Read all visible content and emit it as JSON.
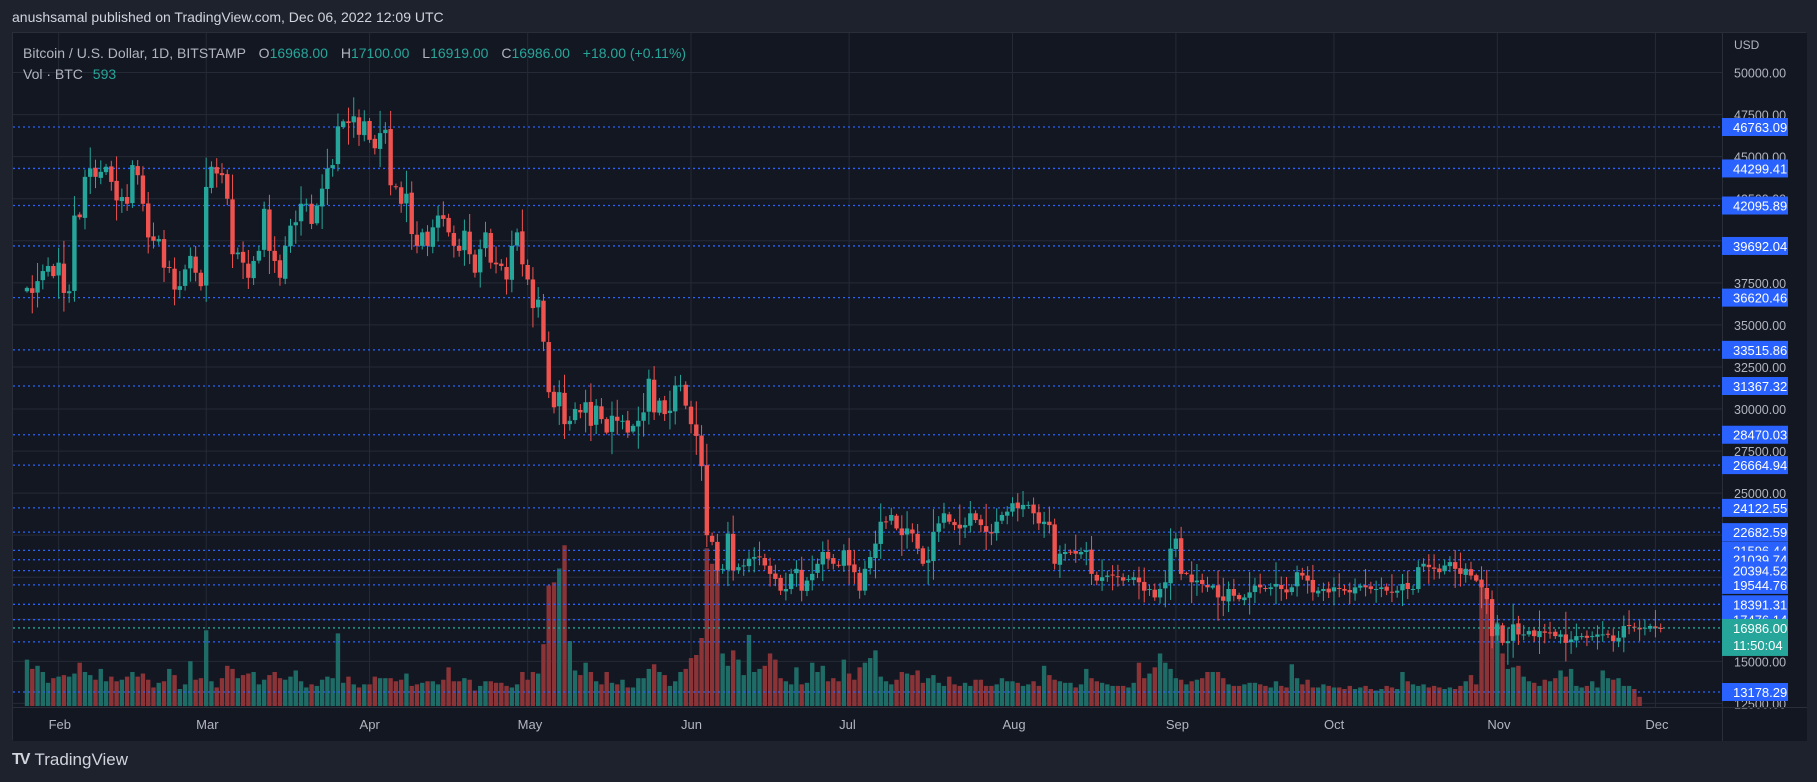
{
  "header": {
    "published_text": "anushsamal published on TradingView.com, Dec 06, 2022 12:09 UTC"
  },
  "legend": {
    "symbol": "Bitcoin / U.S. Dollar, 1D, BITSTAMP",
    "open_label": "O",
    "open": "16968.00",
    "high_label": "H",
    "high": "17100.00",
    "low_label": "L",
    "low": "16919.00",
    "close_label": "C",
    "close": "16986.00",
    "change": "+18.00 (+0.11%)",
    "vol_label": "Vol · BTC",
    "vol_value": "593"
  },
  "footer": {
    "brand": "TradingView",
    "logo_glyph": "TV"
  },
  "colors": {
    "up": "#26a69a",
    "down": "#ef5350",
    "vol_up": "#1f6b66",
    "vol_down": "#8a3438",
    "level_line": "#2962ff",
    "level_label_bg": "#2962ff",
    "last_price_bg": "#26a69a",
    "grid": "#252a36",
    "pane_bg": "#131722",
    "outer_bg": "#1e222d"
  },
  "chart_data": {
    "type": "candlestick",
    "title": "Bitcoin / U.S. Dollar, 1D, BITSTAMP",
    "currency_label": "USD",
    "price_axis_ticks": [
      "50000.00",
      "47500.00",
      "45000.00",
      "42500.00",
      "40000.00",
      "37500.00",
      "35000.00",
      "32500.00",
      "30000.00",
      "27500.00",
      "25000.00",
      "22500.00",
      "20000.00",
      "17500.00",
      "15000.00",
      "12500.00"
    ],
    "price_scale": "linear",
    "ylim": [
      11500,
      51500
    ],
    "x_tick_labels": [
      "Feb",
      "Mar",
      "Apr",
      "May",
      "Jun",
      "Jul",
      "Aug",
      "Sep",
      "Oct",
      "Nov",
      "Dec"
    ],
    "x_tick_day_index": [
      6,
      34,
      65,
      95,
      126,
      156,
      187,
      218,
      248,
      279,
      309
    ],
    "horizontal_levels": [
      "46763.09",
      "44299.41",
      "42095.89",
      "39692.04",
      "36620.46",
      "33515.86",
      "31367.32",
      "28470.03",
      "26664.94",
      "24122.55",
      "22682.59",
      "21596.44",
      "21039.74",
      "20394.52",
      "19544.76",
      "18391.31",
      "17476.14",
      "16159.18",
      "13178.29"
    ],
    "last_price": "16986.00",
    "countdown": "11:50:04",
    "closes": [
      37200,
      36900,
      37600,
      38200,
      38500,
      37900,
      38700,
      36900,
      37000,
      41500,
      41400,
      43800,
      44300,
      43800,
      44100,
      44400,
      43500,
      42400,
      42600,
      42200,
      44500,
      43900,
      42200,
      40200,
      40000,
      40100,
      38400,
      38400,
      37100,
      37300,
      38300,
      39100,
      38100,
      37300,
      43200,
      44400,
      44000,
      43900,
      42500,
      39200,
      39300,
      38700,
      37800,
      38800,
      39400,
      41900,
      39400,
      38800,
      37800,
      39700,
      40900,
      41100,
      42200,
      42200,
      41000,
      42100,
      43100,
      44300,
      44500,
      46800,
      47100,
      47000,
      47400,
      46300,
      47100,
      46000,
      45500,
      46400,
      46600,
      43300,
      43200,
      42200,
      42800,
      40400,
      39700,
      40500,
      39700,
      40800,
      41500,
      41300,
      40500,
      39700,
      39400,
      40600,
      39200,
      38100,
      39500,
      40500,
      38700,
      38600,
      38500,
      37700,
      39700,
      40500,
      38600,
      37700,
      36000,
      36500,
      34000,
      31000,
      30100,
      31000,
      29100,
      29300,
      30000,
      29800,
      30400,
      29000,
      30200,
      29400,
      28600,
      29600,
      29300,
      29300,
      28600,
      29000,
      29300,
      29800,
      31800,
      29800,
      30500,
      29700,
      29900,
      31400,
      31400,
      30200,
      29100,
      28400,
      26600,
      22500,
      22100,
      20400,
      20500,
      22600,
      20400,
      20600,
      20700,
      21100,
      21200,
      21200,
      20700,
      20200,
      19900,
      19200,
      19300,
      20200,
      20500,
      19200,
      19800,
      20200,
      20800,
      21500,
      21100,
      20800,
      20700,
      21600,
      20700,
      20300,
      19200,
      20500,
      21200,
      22000,
      23300,
      23300,
      23700,
      22900,
      22500,
      22900,
      22600,
      21700,
      20800,
      21000,
      22700,
      23200,
      23800,
      23300,
      23100,
      22900,
      23100,
      23800,
      23400,
      23100,
      22700,
      22600,
      23300,
      23700,
      23900,
      24400,
      24100,
      24300,
      24300,
      23800,
      23200,
      23300,
      23100,
      20800,
      21400,
      21500,
      21500,
      21400,
      21500,
      21600,
      20200,
      19800,
      20000,
      20100,
      20100,
      20000,
      19800,
      19900,
      20000,
      19700,
      19200,
      19300,
      18800,
      19300,
      19700,
      21700,
      22300,
      20200,
      20200,
      19700,
      19800,
      19600,
      19400,
      19500,
      18800,
      18600,
      19300,
      18900,
      18700,
      18800,
      19100,
      19500,
      19400,
      19300,
      19400,
      19600,
      19300,
      19100,
      19400,
      20300,
      20100,
      19800,
      19100,
      19200,
      19300,
      19100,
      19400,
      19300,
      19200,
      19100,
      19400,
      19500,
      19400,
      19300,
      19300,
      19400,
      19200,
      19100,
      19200,
      19600,
      19300,
      19300,
      20600,
      20800,
      20600,
      20500,
      20300,
      20700,
      20900,
      20500,
      20200,
      20500,
      20100,
      19800,
      19400,
      18700,
      16500,
      17200,
      16100,
      16200,
      17200,
      16600,
      16600,
      16800,
      16500,
      16800,
      16700,
      16700,
      16500,
      16600,
      16100,
      16300,
      16500,
      16500,
      16400,
      16500,
      16600,
      16600,
      16600,
      16200,
      16400,
      17100,
      17100,
      17000,
      16900,
      17000,
      17100,
      16968,
      16986
    ],
    "volumes": [
      3000,
      2400,
      2600,
      2200,
      1500,
      1800,
      1900,
      2000,
      1900,
      2100,
      2800,
      2200,
      2000,
      1700,
      2400,
      1600,
      1900,
      1600,
      1700,
      1900,
      2200,
      1900,
      2100,
      1700,
      1200,
      1500,
      1600,
      2400,
      2000,
      1100,
      1400,
      2900,
      1700,
      1800,
      4900,
      1600,
      1200,
      1800,
      2600,
      2400,
      1800,
      2000,
      2100,
      2200,
      1400,
      1700,
      2000,
      2200,
      1800,
      1700,
      1900,
      2300,
      1600,
      1200,
      1400,
      1300,
      1700,
      1900,
      1800,
      4700,
      1500,
      1900,
      1400,
      1200,
      1400,
      1400,
      1900,
      1800,
      1800,
      1800,
      1600,
      1700,
      2100,
      1300,
      1400,
      1500,
      1600,
      1600,
      1400,
      1700,
      2500,
      1600,
      1600,
      1800,
      1700,
      1000,
      1300,
      1600,
      1600,
      1500,
      1500,
      1300,
      1200,
      1400,
      2200,
      1700,
      2200,
      2100,
      4000,
      7800,
      8000,
      8900,
      10400,
      4200,
      2300,
      2000,
      2800,
      2200,
      1600,
      1400,
      2200,
      1500,
      1400,
      1700,
      1200,
      1200,
      1800,
      1800,
      2400,
      2700,
      2200,
      2000,
      1300,
      1600,
      2200,
      2400,
      3100,
      3300,
      4400,
      10200,
      9200,
      10600,
      3400,
      2600,
      3600,
      3000,
      2000,
      4600,
      2200,
      2400,
      2600,
      3400,
      3000,
      1800,
      1600,
      1400,
      2500,
      1400,
      1500,
      2800,
      2200,
      2600,
      1600,
      1800,
      1600,
      3000,
      2100,
      1700,
      2500,
      2800,
      3100,
      3600,
      1900,
      1600,
      1400,
      1700,
      2200,
      2100,
      2000,
      2300,
      1500,
      1800,
      2000,
      1500,
      1300,
      1900,
      1400,
      1300,
      1500,
      1300,
      1700,
      1700,
      1300,
      1300,
      1400,
      1800,
      1600,
      1600,
      1500,
      1300,
      1400,
      1600,
      1300,
      2600,
      2000,
      1700,
      1600,
      1500,
      1500,
      1200,
      1400,
      2400,
      1800,
      1600,
      1500,
      1400,
      1300,
      1300,
      1300,
      1200,
      1500,
      2800,
      1800,
      2100,
      2500,
      3400,
      2800,
      2400,
      1800,
      1700,
      1400,
      1600,
      1700,
      1800,
      2200,
      2200,
      2200,
      1800,
      1400,
      1300,
      1300,
      1400,
      1500,
      1500,
      1400,
      1300,
      1200,
      1600,
      1300,
      1200,
      2700,
      1800,
      1400,
      1700,
      1200,
      1200,
      1400,
      1300,
      1200,
      1200,
      1100,
      1300,
      1100,
      1200,
      1300,
      1100,
      1000,
      1100,
      1300,
      1200,
      1100,
      2200,
      1600,
      1400,
      1300,
      1400,
      1200,
      1300,
      1200,
      1100,
      1200,
      1100,
      1300,
      1600,
      2000,
      1400,
      7800,
      7400,
      5600,
      5400,
      3400,
      2400,
      2500,
      2600,
      1900,
      1600,
      1500,
      1300,
      1700,
      1600,
      1800,
      2300,
      1900,
      2400,
      1300,
      1200,
      1300,
      1600,
      1200,
      2300,
      1800,
      1700,
      1800,
      1300,
      1300,
      1100,
      593
    ]
  }
}
